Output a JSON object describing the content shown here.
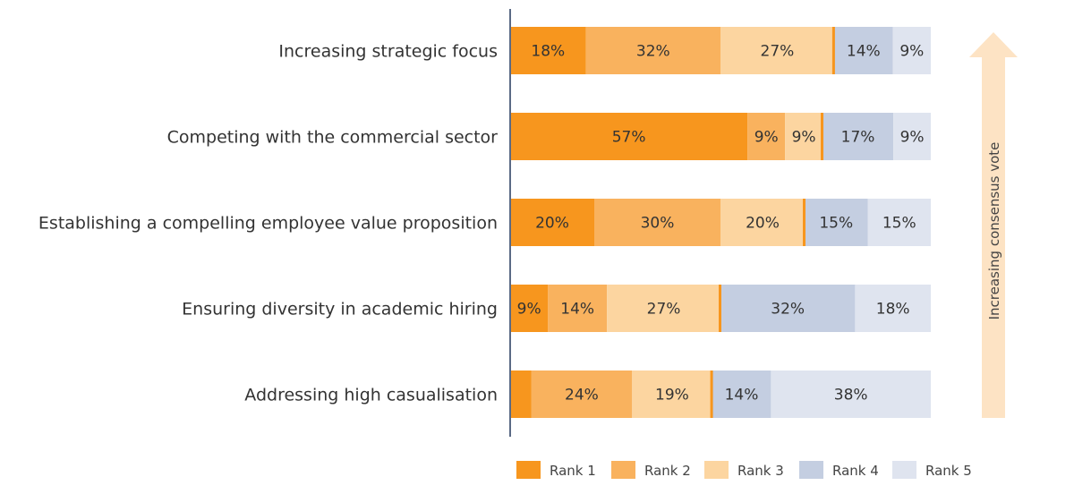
{
  "chart_data": {
    "type": "bar",
    "orientation": "horizontal",
    "stacked": true,
    "percent": true,
    "categories": [
      "Increasing strategic focus",
      "Competing with the commercial sector",
      "Establishing a compelling employee value proposition",
      "Ensuring diversity in academic hiring",
      "Addressing high casualisation"
    ],
    "series": [
      {
        "name": "Rank 1",
        "color": "#F7961E",
        "values": [
          18,
          57,
          20,
          9,
          5
        ],
        "labels": [
          "18%",
          "57%",
          "20%",
          "9%",
          ""
        ]
      },
      {
        "name": "Rank 2",
        "color": "#F9B25E",
        "values": [
          32,
          9,
          30,
          14,
          24
        ],
        "labels": [
          "32%",
          "9%",
          "30%",
          "14%",
          "24%"
        ]
      },
      {
        "name": "Rank 3",
        "color": "#FCD5A0",
        "values": [
          27,
          9,
          20,
          27,
          19
        ],
        "labels": [
          "27%",
          "9%",
          "20%",
          "27%",
          "19%"
        ]
      },
      {
        "name": "Rank 4",
        "color": "#C4CEE1",
        "values": [
          14,
          17,
          15,
          32,
          14
        ],
        "labels": [
          "14%",
          "17%",
          "15%",
          "32%",
          "14%"
        ]
      },
      {
        "name": "Rank 5",
        "color": "#DFE4EF",
        "values": [
          9,
          9,
          15,
          18,
          38
        ],
        "labels": [
          "9%",
          "9%",
          "15%",
          "18%",
          "38%"
        ]
      }
    ],
    "xlim": [
      0,
      100
    ],
    "grid": false,
    "legend_placement": "bottom",
    "annotation": {
      "text": "Increasing consensus vote",
      "color": "#FDE3C4",
      "direction": "up"
    }
  }
}
